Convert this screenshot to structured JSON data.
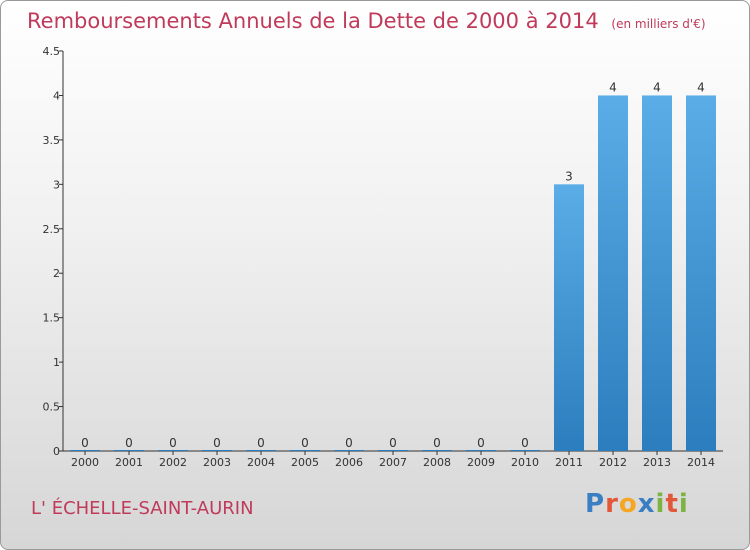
{
  "title": "Remboursements Annuels de la Dette de 2000 à 2014",
  "subtitle": "(en milliers d'€)",
  "commune": "L' ÉCHELLE-SAINT-AURIN",
  "logo": {
    "text": "Proxiti",
    "letters": [
      {
        "ch": "P",
        "color": "#3a7fc4"
      },
      {
        "ch": "r",
        "color": "#e2563a"
      },
      {
        "ch": "o",
        "color": "#f5a623"
      },
      {
        "ch": "x",
        "color": "#3a7fc4"
      },
      {
        "ch": "i",
        "color": "#7cb342"
      },
      {
        "ch": "t",
        "color": "#e2563a"
      },
      {
        "ch": "i",
        "color": "#7cb342"
      }
    ]
  },
  "colors": {
    "title": "#c03a5a",
    "bar_top": "#5aade6",
    "bar_bottom": "#2c7dbd",
    "axis": "#333333"
  },
  "chart_data": {
    "type": "bar",
    "categories": [
      "2000",
      "2001",
      "2002",
      "2003",
      "2004",
      "2005",
      "2006",
      "2007",
      "2008",
      "2009",
      "2010",
      "2011",
      "2012",
      "2013",
      "2014"
    ],
    "values": [
      0,
      0,
      0,
      0,
      0,
      0,
      0,
      0,
      0,
      0,
      0,
      3,
      4,
      4,
      4
    ],
    "data_labels": [
      "0",
      "0",
      "0",
      "0",
      "0",
      "0",
      "0",
      "0",
      "0",
      "0",
      "0",
      "3",
      "4",
      "4",
      "4"
    ],
    "yticks": [
      "0",
      "0.5",
      "1",
      "1.5",
      "2",
      "2.5",
      "3",
      "3.5",
      "4",
      "4.5"
    ],
    "ylim": [
      0,
      4.5
    ],
    "grid": false,
    "legend": "none"
  }
}
